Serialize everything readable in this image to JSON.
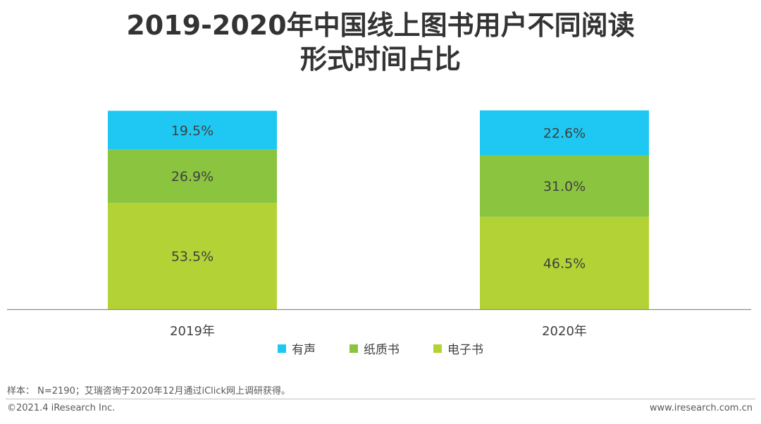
{
  "title": {
    "line1": "2019-2020年中国线上图书用户不同阅读",
    "line2": "形式时间占比"
  },
  "chart_data": {
    "type": "bar",
    "stacked": true,
    "categories": [
      "2019年",
      "2020年"
    ],
    "series": [
      {
        "name": "电子书",
        "values": [
          53.5,
          46.5
        ],
        "color": "#b2d235",
        "labels": [
          "53.5%",
          "46.5%"
        ]
      },
      {
        "name": "纸质书",
        "values": [
          26.9,
          31.0
        ],
        "color": "#8bc53f",
        "labels": [
          "26.9%",
          "31.0%"
        ]
      },
      {
        "name": "有声",
        "values": [
          19.5,
          22.6
        ],
        "color": "#1ec8f2",
        "labels": [
          "19.5%",
          "22.6%"
        ]
      }
    ],
    "ylim": [
      0,
      100
    ],
    "legend_order": [
      "有声",
      "纸质书",
      "电子书"
    ],
    "legend_position": "bottom",
    "grid": false
  },
  "note": "样本： N=2190；艾瑞咨询于2020年12月通过iClick网上调研获得。",
  "footer": {
    "copyright": "©2021.4 iResearch Inc.",
    "website": "www.iresearch.com.cn"
  }
}
